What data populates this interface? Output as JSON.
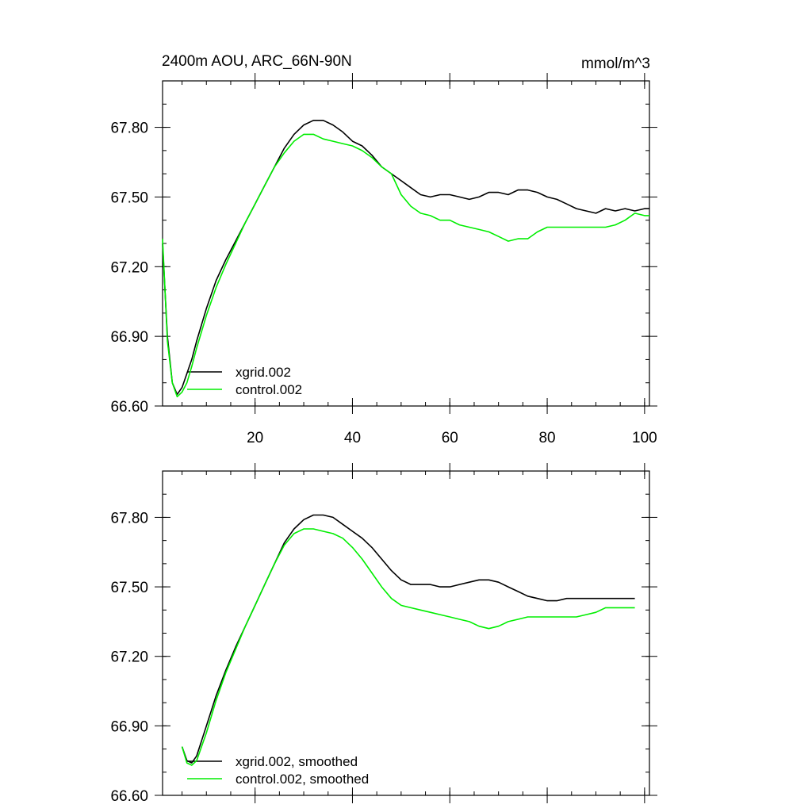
{
  "figure": {
    "title_left": "2400m AOU, ARC_66N-90N",
    "title_right": "mmol/m^3"
  },
  "colors": {
    "series_a": "#000000",
    "series_b": "#00ee00"
  },
  "chart_data": [
    {
      "type": "line",
      "xlim": [
        1,
        101
      ],
      "ylim": [
        66.6,
        68.0
      ],
      "xticks": [
        20,
        40,
        60,
        80,
        100
      ],
      "xtick_labels": [
        "20",
        "40",
        "60",
        "80",
        "100"
      ],
      "yticks": [
        66.6,
        66.9,
        67.2,
        67.5,
        67.8
      ],
      "ytick_labels": [
        "66.60",
        "66.90",
        "67.20",
        "67.50",
        "67.80"
      ],
      "legend_position": "bottom-left",
      "series": [
        {
          "name": "xgrid.002",
          "color": "#000000",
          "x": [
            1,
            2,
            3,
            4,
            5,
            6,
            7,
            8,
            10,
            12,
            14,
            16,
            18,
            20,
            22,
            24,
            26,
            28,
            30,
            32,
            34,
            36,
            38,
            40,
            42,
            44,
            46,
            48,
            50,
            52,
            54,
            56,
            58,
            60,
            62,
            64,
            66,
            68,
            70,
            72,
            74,
            76,
            78,
            80,
            82,
            84,
            86,
            88,
            90,
            92,
            94,
            96,
            98,
            100,
            101
          ],
          "y": [
            67.3,
            66.9,
            66.7,
            66.65,
            66.68,
            66.74,
            66.8,
            66.88,
            67.02,
            67.14,
            67.23,
            67.31,
            67.39,
            67.47,
            67.55,
            67.63,
            67.71,
            67.77,
            67.81,
            67.83,
            67.83,
            67.81,
            67.78,
            67.74,
            67.72,
            67.68,
            67.63,
            67.6,
            67.57,
            67.54,
            67.51,
            67.5,
            67.51,
            67.51,
            67.5,
            67.49,
            67.5,
            67.52,
            67.52,
            67.51,
            67.53,
            67.53,
            67.52,
            67.5,
            67.49,
            67.47,
            67.45,
            67.44,
            67.43,
            67.45,
            67.44,
            67.45,
            67.44,
            67.45,
            67.45
          ]
        },
        {
          "name": "control.002",
          "color": "#00ee00",
          "x": [
            1,
            2,
            3,
            4,
            5,
            6,
            7,
            8,
            10,
            12,
            14,
            16,
            18,
            20,
            22,
            24,
            26,
            28,
            30,
            32,
            34,
            36,
            38,
            40,
            42,
            44,
            46,
            48,
            50,
            52,
            54,
            56,
            58,
            60,
            62,
            64,
            66,
            68,
            70,
            72,
            74,
            76,
            78,
            80,
            82,
            84,
            86,
            88,
            90,
            92,
            94,
            96,
            98,
            100,
            101
          ],
          "y": [
            67.32,
            66.88,
            66.7,
            66.64,
            66.66,
            66.7,
            66.77,
            66.85,
            66.99,
            67.11,
            67.21,
            67.3,
            67.39,
            67.47,
            67.55,
            67.63,
            67.69,
            67.74,
            67.77,
            67.77,
            67.75,
            67.74,
            67.73,
            67.72,
            67.7,
            67.67,
            67.63,
            67.6,
            67.51,
            67.46,
            67.43,
            67.42,
            67.4,
            67.4,
            67.38,
            67.37,
            67.36,
            67.35,
            67.33,
            67.31,
            67.32,
            67.32,
            67.35,
            67.37,
            67.37,
            67.37,
            67.37,
            67.37,
            67.37,
            67.37,
            67.38,
            67.4,
            67.43,
            67.42,
            67.42
          ]
        }
      ]
    },
    {
      "type": "line",
      "xlim": [
        1,
        101
      ],
      "ylim": [
        66.6,
        68.0
      ],
      "xticks": [
        20,
        40,
        60,
        80,
        100
      ],
      "xtick_labels": [],
      "yticks": [
        66.6,
        66.9,
        67.2,
        67.5,
        67.8
      ],
      "ytick_labels": [
        "66.60",
        "66.90",
        "67.20",
        "67.50",
        "67.80"
      ],
      "legend_position": "bottom-left",
      "series": [
        {
          "name": "xgrid.002, smoothed",
          "color": "#000000",
          "x": [
            5,
            6,
            7,
            8,
            10,
            12,
            14,
            16,
            18,
            20,
            22,
            24,
            26,
            28,
            30,
            32,
            34,
            36,
            38,
            40,
            42,
            44,
            46,
            48,
            50,
            52,
            54,
            56,
            58,
            60,
            62,
            64,
            66,
            68,
            70,
            72,
            74,
            76,
            78,
            80,
            82,
            84,
            86,
            88,
            90,
            92,
            94,
            96,
            98
          ],
          "y": [
            66.81,
            66.75,
            66.74,
            66.77,
            66.9,
            67.03,
            67.14,
            67.24,
            67.33,
            67.42,
            67.51,
            67.6,
            67.69,
            67.75,
            67.79,
            67.81,
            67.81,
            67.8,
            67.77,
            67.74,
            67.71,
            67.67,
            67.62,
            67.57,
            67.53,
            67.51,
            67.51,
            67.51,
            67.5,
            67.5,
            67.51,
            67.52,
            67.53,
            67.53,
            67.52,
            67.5,
            67.48,
            67.46,
            67.45,
            67.44,
            67.44,
            67.45,
            67.45,
            67.45,
            67.45,
            67.45,
            67.45,
            67.45,
            67.45
          ]
        },
        {
          "name": "control.002, smoothed",
          "color": "#00ee00",
          "x": [
            5,
            6,
            7,
            8,
            10,
            12,
            14,
            16,
            18,
            20,
            22,
            24,
            26,
            28,
            30,
            32,
            34,
            36,
            38,
            40,
            42,
            44,
            46,
            48,
            50,
            52,
            54,
            56,
            58,
            60,
            62,
            64,
            66,
            68,
            70,
            72,
            74,
            76,
            78,
            80,
            82,
            84,
            86,
            88,
            90,
            92,
            94,
            96,
            98
          ],
          "y": [
            66.81,
            66.74,
            66.73,
            66.75,
            66.87,
            67.01,
            67.13,
            67.23,
            67.33,
            67.42,
            67.51,
            67.6,
            67.68,
            67.73,
            67.75,
            67.75,
            67.74,
            67.73,
            67.71,
            67.67,
            67.62,
            67.56,
            67.5,
            67.45,
            67.42,
            67.41,
            67.4,
            67.39,
            67.38,
            67.37,
            67.36,
            67.35,
            67.33,
            67.32,
            67.33,
            67.35,
            67.36,
            67.37,
            67.37,
            67.37,
            67.37,
            67.37,
            67.37,
            67.38,
            67.39,
            67.41,
            67.41,
            67.41,
            67.41
          ]
        }
      ]
    }
  ]
}
